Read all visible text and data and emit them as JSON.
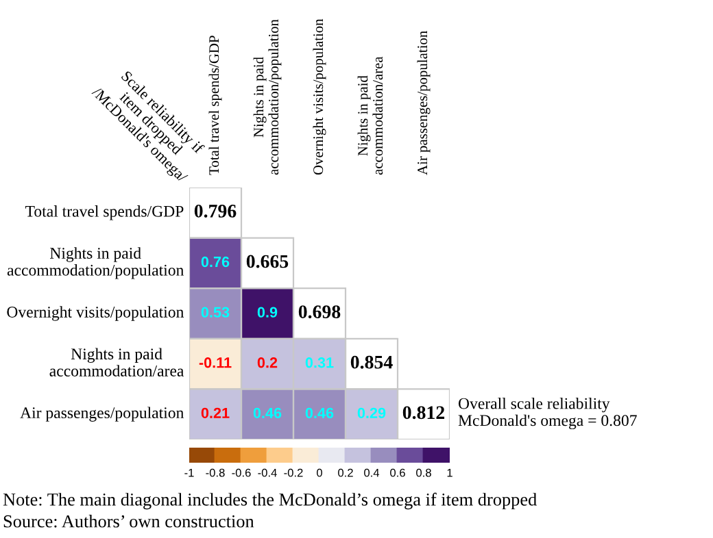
{
  "chart_data": {
    "type": "heatmap",
    "xlabel": "Scale reliability if\nitem dropped\n/McDonald's omega/",
    "categories": [
      "Total travel spends/GDP",
      "Nights in paid\naccommodation/population",
      "Overnight visits/population",
      "Nights in paid\naccommodation/area",
      "Air passenges/population"
    ],
    "y_categories": [
      "Total travel spends/GDP",
      "Nights in paid\naccommodation/population",
      "Overnight visits/population",
      "Nights in paid\naccommodation/area",
      "Air passenges/population"
    ],
    "cells": [
      [
        null,
        null,
        null,
        null,
        null
      ],
      [
        0.76,
        null,
        null,
        null,
        null
      ],
      [
        0.53,
        0.9,
        null,
        null,
        null
      ],
      [
        -0.11,
        0.2,
        0.31,
        null,
        null
      ],
      [
        0.21,
        0.46,
        0.46,
        0.29,
        null
      ]
    ],
    "data_labels": true,
    "clim": [
      -1,
      1
    ],
    "cticks": [
      -1,
      -0.8,
      -0.6,
      -0.4,
      -0.2,
      0,
      0.2,
      0.4,
      0.6,
      0.8,
      1
    ],
    "annotations": [
      {
        "text": "0.796",
        "x": "Total travel spends/GDP",
        "y": "Total travel spends/GDP"
      },
      {
        "text": "0.665",
        "x": "Nights in paid\naccommodation/population",
        "y": "Nights in paid\naccommodation/population"
      },
      {
        "text": "0.698",
        "x": "Overnight visits/population",
        "y": "Overnight visits/population"
      },
      {
        "text": "0.854",
        "x": "Nights in paid\naccommodation/area",
        "y": "Nights in paid\naccommodation/area"
      },
      {
        "text": "0.812",
        "x": "Air passenges/population",
        "y": "Air passenges/population"
      },
      "Overall scale reliability\nMcDonald's omega = 0.807",
      "Note: The main diagonal includes the McDonald’s omega if item dropped",
      "Source: Authors’ own construction"
    ]
  }
}
